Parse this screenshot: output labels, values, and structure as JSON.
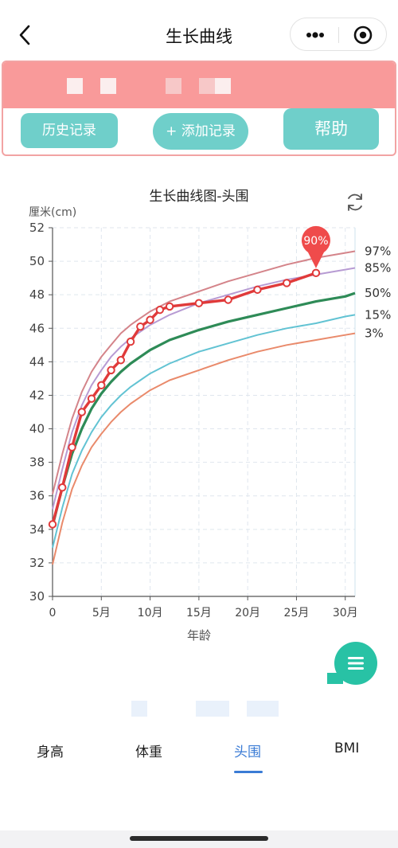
{
  "nav": {
    "title": "生长曲线",
    "back_icon": "chevron-left-icon",
    "more_icon": "more-dots-icon",
    "close_icon": "target-circle-icon"
  },
  "header": {
    "history_label": "历史记录",
    "add_label": "+ 添加记录",
    "help_label": "帮助",
    "band_color": "#f99a9a",
    "button_color": "#6fcfca"
  },
  "chart_data": {
    "type": "line",
    "title": "生长曲线图-头围",
    "ylabel": "厘米(cm)",
    "xlabel": "年龄",
    "xlim": [
      0,
      31
    ],
    "ylim": [
      30,
      52
    ],
    "xticks": [
      0,
      5,
      10,
      15,
      20,
      25,
      30
    ],
    "xtick_labels": [
      "0",
      "5月",
      "10月",
      "15月",
      "20月",
      "25月",
      "30月"
    ],
    "yticks": [
      30,
      32,
      34,
      36,
      38,
      40,
      42,
      44,
      46,
      48,
      50,
      52
    ],
    "grid": true,
    "series": [
      {
        "name": "97%",
        "color": "#d4848a",
        "points": [
          [
            0,
            36.1
          ],
          [
            1,
            38.5
          ],
          [
            2,
            40.6
          ],
          [
            3,
            42.2
          ],
          [
            4,
            43.4
          ],
          [
            5,
            44.3
          ],
          [
            6,
            45.0
          ],
          [
            7,
            45.7
          ],
          [
            8,
            46.2
          ],
          [
            9,
            46.6
          ],
          [
            10,
            47.0
          ],
          [
            12,
            47.6
          ],
          [
            15,
            48.2
          ],
          [
            18,
            48.8
          ],
          [
            21,
            49.3
          ],
          [
            24,
            49.8
          ],
          [
            27,
            50.2
          ],
          [
            30,
            50.5
          ],
          [
            31,
            50.6
          ]
        ]
      },
      {
        "name": "85%",
        "color": "#b79bd3",
        "points": [
          [
            0,
            35.2
          ],
          [
            1,
            37.6
          ],
          [
            2,
            39.8
          ],
          [
            3,
            41.4
          ],
          [
            4,
            42.6
          ],
          [
            5,
            43.5
          ],
          [
            6,
            44.3
          ],
          [
            7,
            44.9
          ],
          [
            8,
            45.4
          ],
          [
            9,
            45.8
          ],
          [
            10,
            46.2
          ],
          [
            12,
            46.8
          ],
          [
            15,
            47.5
          ],
          [
            18,
            48.0
          ],
          [
            21,
            48.5
          ],
          [
            24,
            48.9
          ],
          [
            27,
            49.2
          ],
          [
            30,
            49.5
          ],
          [
            31,
            49.6
          ]
        ]
      },
      {
        "name": "50%",
        "color": "#2e8b57",
        "points": [
          [
            0,
            34.2
          ],
          [
            1,
            36.5
          ],
          [
            2,
            38.5
          ],
          [
            3,
            40.0
          ],
          [
            4,
            41.2
          ],
          [
            5,
            42.1
          ],
          [
            6,
            42.8
          ],
          [
            7,
            43.4
          ],
          [
            8,
            43.9
          ],
          [
            9,
            44.3
          ],
          [
            10,
            44.7
          ],
          [
            12,
            45.3
          ],
          [
            15,
            45.9
          ],
          [
            18,
            46.4
          ],
          [
            21,
            46.8
          ],
          [
            24,
            47.2
          ],
          [
            27,
            47.6
          ],
          [
            30,
            47.9
          ],
          [
            31,
            48.1
          ]
        ]
      },
      {
        "name": "15%",
        "color": "#62c3d3",
        "points": [
          [
            0,
            32.9
          ],
          [
            1,
            35.3
          ],
          [
            2,
            37.3
          ],
          [
            3,
            38.7
          ],
          [
            4,
            39.8
          ],
          [
            5,
            40.7
          ],
          [
            6,
            41.4
          ],
          [
            7,
            42.0
          ],
          [
            8,
            42.5
          ],
          [
            9,
            42.9
          ],
          [
            10,
            43.3
          ],
          [
            12,
            43.9
          ],
          [
            15,
            44.6
          ],
          [
            18,
            45.1
          ],
          [
            21,
            45.6
          ],
          [
            24,
            46.0
          ],
          [
            27,
            46.3
          ],
          [
            30,
            46.7
          ],
          [
            31,
            46.8
          ]
        ]
      },
      {
        "name": "3%",
        "color": "#e98a6b",
        "points": [
          [
            0,
            31.9
          ],
          [
            1,
            34.4
          ],
          [
            2,
            36.4
          ],
          [
            3,
            37.8
          ],
          [
            4,
            38.9
          ],
          [
            5,
            39.7
          ],
          [
            6,
            40.4
          ],
          [
            7,
            41.0
          ],
          [
            8,
            41.5
          ],
          [
            9,
            41.9
          ],
          [
            10,
            42.3
          ],
          [
            12,
            42.9
          ],
          [
            15,
            43.5
          ],
          [
            18,
            44.1
          ],
          [
            21,
            44.6
          ],
          [
            24,
            45.0
          ],
          [
            27,
            45.3
          ],
          [
            30,
            45.6
          ],
          [
            31,
            45.7
          ]
        ]
      }
    ],
    "measurements": {
      "color": "#e03a3a",
      "points": [
        [
          0,
          34.3
        ],
        [
          1,
          36.5
        ],
        [
          2,
          38.9
        ],
        [
          3,
          41.0
        ],
        [
          4,
          41.8
        ],
        [
          5,
          42.6
        ],
        [
          6,
          43.5
        ],
        [
          7,
          44.1
        ],
        [
          8,
          45.2
        ],
        [
          9,
          46.1
        ],
        [
          10,
          46.5
        ],
        [
          11,
          47.1
        ],
        [
          12,
          47.3
        ],
        [
          15,
          47.5
        ],
        [
          18,
          47.7
        ],
        [
          21,
          48.3
        ],
        [
          24,
          48.7
        ],
        [
          27,
          49.3
        ]
      ]
    },
    "percentile_marker": {
      "label": "90%",
      "x": 27,
      "y": 49.3,
      "color": "#ef4b4b"
    }
  },
  "fab_icon": "menu-lines-icon",
  "tabs": [
    {
      "label": "身高",
      "active": false
    },
    {
      "label": "体重",
      "active": false
    },
    {
      "label": "头围",
      "active": true
    },
    {
      "label": "BMI",
      "active": false
    }
  ]
}
